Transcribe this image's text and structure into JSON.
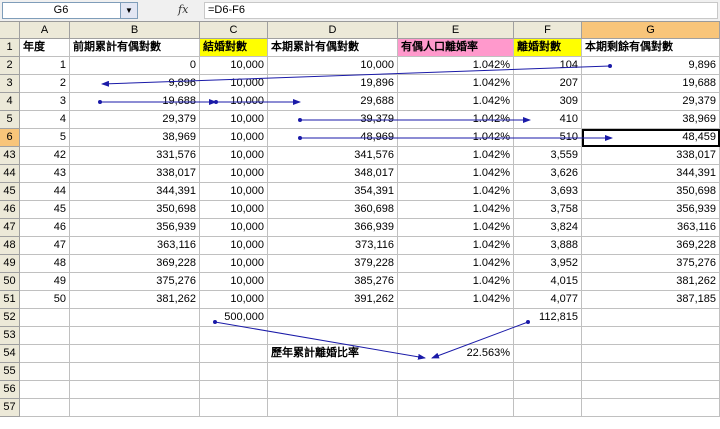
{
  "name_box": "G6",
  "formula_icon": "fx",
  "formula": "=D6-F6",
  "columns": [
    "A",
    "B",
    "C",
    "D",
    "E",
    "F",
    "G"
  ],
  "selected_column": "G",
  "headers": [
    "年度",
    "前期累計有偶對數",
    "結婚對數",
    "本期累計有偶對數",
    "有偶人口離婚率",
    "離婚對數",
    "本期剩餘有偶對數"
  ],
  "rows": [
    {
      "row": "2",
      "cells": [
        "1",
        "0",
        "10,000",
        "10,000",
        "1.042%",
        "104",
        "9,896"
      ]
    },
    {
      "row": "3",
      "cells": [
        "2",
        "9,896",
        "10,000",
        "19,896",
        "1.042%",
        "207",
        "19,688"
      ]
    },
    {
      "row": "4",
      "cells": [
        "3",
        "19,688",
        "10,000",
        "29,688",
        "1.042%",
        "309",
        "29,379"
      ]
    },
    {
      "row": "5",
      "cells": [
        "4",
        "29,379",
        "10,000",
        "39,379",
        "1.042%",
        "410",
        "38,969"
      ]
    },
    {
      "row": "6",
      "cells": [
        "5",
        "38,969",
        "10,000",
        "48,969",
        "1.042%",
        "510",
        "48,459"
      ]
    },
    {
      "row": "43",
      "cells": [
        "42",
        "331,576",
        "10,000",
        "341,576",
        "1.042%",
        "3,559",
        "338,017"
      ]
    },
    {
      "row": "44",
      "cells": [
        "43",
        "338,017",
        "10,000",
        "348,017",
        "1.042%",
        "3,626",
        "344,391"
      ]
    },
    {
      "row": "45",
      "cells": [
        "44",
        "344,391",
        "10,000",
        "354,391",
        "1.042%",
        "3,693",
        "350,698"
      ]
    },
    {
      "row": "46",
      "cells": [
        "45",
        "350,698",
        "10,000",
        "360,698",
        "1.042%",
        "3,758",
        "356,939"
      ]
    },
    {
      "row": "47",
      "cells": [
        "46",
        "356,939",
        "10,000",
        "366,939",
        "1.042%",
        "3,824",
        "363,116"
      ]
    },
    {
      "row": "48",
      "cells": [
        "47",
        "363,116",
        "10,000",
        "373,116",
        "1.042%",
        "3,888",
        "369,228"
      ]
    },
    {
      "row": "49",
      "cells": [
        "48",
        "369,228",
        "10,000",
        "379,228",
        "1.042%",
        "3,952",
        "375,276"
      ]
    },
    {
      "row": "50",
      "cells": [
        "49",
        "375,276",
        "10,000",
        "385,276",
        "1.042%",
        "4,015",
        "381,262"
      ]
    },
    {
      "row": "51",
      "cells": [
        "50",
        "381,262",
        "10,000",
        "391,262",
        "1.042%",
        "4,077",
        "387,185"
      ]
    },
    {
      "row": "52",
      "cells": [
        "",
        "",
        "500,000",
        "",
        "",
        "112,815",
        ""
      ]
    },
    {
      "row": "53",
      "cells": [
        "",
        "",
        "",
        "",
        "",
        "",
        ""
      ]
    },
    {
      "row": "54",
      "cells": [
        "",
        "",
        "",
        "歷年累計離婚比率",
        "22.563%",
        "",
        ""
      ]
    },
    {
      "row": "55",
      "cells": [
        "",
        "",
        "",
        "",
        "",
        "",
        ""
      ]
    },
    {
      "row": "56",
      "cells": [
        "",
        "",
        "",
        "",
        "",
        "",
        ""
      ]
    },
    {
      "row": "57",
      "cells": [
        "",
        "",
        "",
        "",
        "",
        "",
        ""
      ]
    }
  ],
  "colors": {
    "header_yellow": "#ffff00",
    "header_pink": "#ff99cc",
    "arrow": "#1a1aa8",
    "selected_col": "#f8c57a"
  }
}
